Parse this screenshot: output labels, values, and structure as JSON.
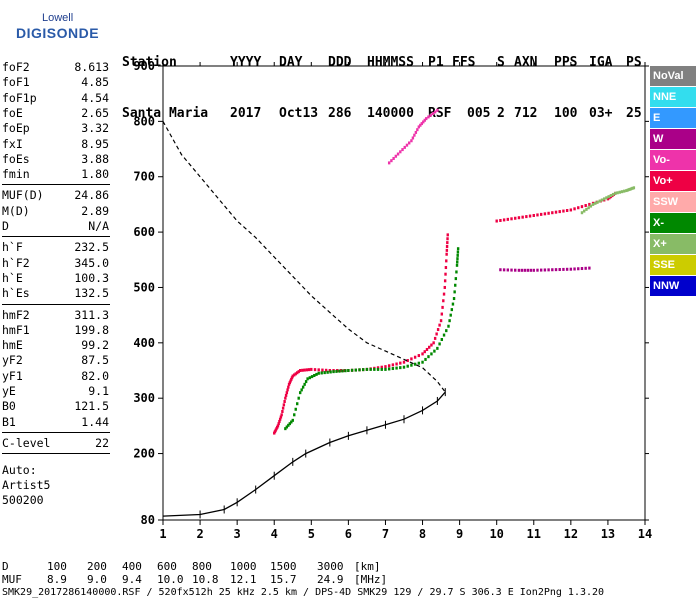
{
  "logo": {
    "top": "Lowell",
    "main": "DIGISONDE"
  },
  "header": {
    "row1": [
      "Station",
      "YYYY",
      "DAY",
      "DDD",
      "HHMMSS",
      "P1",
      "FFS",
      "S",
      "AXN",
      "PPS",
      "IGA",
      "PS"
    ],
    "row2": [
      "Santa Maria",
      "2017",
      "Oct13",
      "286",
      "140000",
      "RSF",
      "005",
      "2",
      "712",
      "100",
      "03+",
      "25"
    ]
  },
  "params_a": [
    {
      "label": "foF2",
      "value": "8.613"
    },
    {
      "label": "foF1",
      "value": "4.85"
    },
    {
      "label": "foF1p",
      "value": "4.54"
    },
    {
      "label": "foE",
      "value": "2.65"
    },
    {
      "label": "foEp",
      "value": "3.32"
    },
    {
      "label": "fxI",
      "value": "8.95"
    },
    {
      "label": "foEs",
      "value": "3.88"
    },
    {
      "label": "fmin",
      "value": "1.80"
    }
  ],
  "params_b": [
    {
      "label": "MUF(D)",
      "value": "24.86"
    },
    {
      "label": "M(D)",
      "value": "2.89"
    },
    {
      "label": "D",
      "value": "N/A"
    }
  ],
  "params_c": [
    {
      "label": "h`F",
      "value": "232.5"
    },
    {
      "label": "h`F2",
      "value": "345.0"
    },
    {
      "label": "h`E",
      "value": "100.3"
    },
    {
      "label": "h`Es",
      "value": "132.5"
    }
  ],
  "params_d": [
    {
      "label": "hmF2",
      "value": "311.3"
    },
    {
      "label": "hmF1",
      "value": "199.8"
    },
    {
      "label": "hmE",
      "value": "99.2"
    },
    {
      "label": "yF2",
      "value": "87.5"
    },
    {
      "label": "yF1",
      "value": "82.0"
    },
    {
      "label": "yE",
      "value": "9.1"
    },
    {
      "label": "B0",
      "value": "121.5"
    },
    {
      "label": "B1",
      "value": "1.44"
    }
  ],
  "params_e": [
    {
      "label": "C-level",
      "value": "22"
    }
  ],
  "auto": {
    "line1": "Auto:",
    "line2": "Artist5",
    "line3": "500200"
  },
  "legend": [
    {
      "label": "NoVal",
      "bg": "#808080",
      "fg": "#ffffff"
    },
    {
      "label": "NNE",
      "bg": "#33ddee",
      "fg": "#ffffff"
    },
    {
      "label": "E",
      "bg": "#3399ff",
      "fg": "#ffffff"
    },
    {
      "label": "W",
      "bg": "#aa0088",
      "fg": "#ffffff"
    },
    {
      "label": "Vo-",
      "bg": "#ee33aa",
      "fg": "#ffffff"
    },
    {
      "label": "Vo+",
      "bg": "#ee0044",
      "fg": "#ffffff"
    },
    {
      "label": "SSW",
      "bg": "#ffaaaa",
      "fg": "#ffffff"
    },
    {
      "label": "X-",
      "bg": "#008800",
      "fg": "#ffffff"
    },
    {
      "label": "X+",
      "bg": "#88bb66",
      "fg": "#ffffff"
    },
    {
      "label": "SSE",
      "bg": "#cccc00",
      "fg": "#ffffff"
    },
    {
      "label": "NNW",
      "bg": "#0000cc",
      "fg": "#ffffff"
    }
  ],
  "bottom": {
    "d_row": {
      "label": "D",
      "values": [
        "100",
        "200",
        "400",
        "600",
        "800",
        "1000",
        "1500",
        "3000",
        "[km]"
      ]
    },
    "muf_row": {
      "label": "MUF",
      "values": [
        "8.9",
        "9.0",
        "9.4",
        "10.0",
        "10.8",
        "12.1",
        "15.7",
        "24.9",
        "[MHz]"
      ]
    },
    "footer": "SMK29_2017286140000.RSF / 520fx512h 25 kHz 2.5 km / DPS-4D SMK29 129 / 29.7 S 306.3 E Ion2Png 1.3.20"
  },
  "chart_data": {
    "type": "scatter",
    "xlim": [
      1,
      14
    ],
    "ylim": [
      80,
      900
    ],
    "x_ticks": [
      "1",
      "2",
      "3",
      "4",
      "5",
      "6",
      "7",
      "8",
      "9",
      "10",
      "11",
      "12",
      "13",
      "14"
    ],
    "y_ticks": [
      "80",
      "200",
      "300",
      "400",
      "500",
      "600",
      "700",
      "800",
      "900"
    ],
    "grid": false,
    "series": [
      {
        "color": "#ee0044",
        "points": [
          [
            4.0,
            237
          ],
          [
            4.1,
            250
          ],
          [
            4.2,
            270
          ],
          [
            4.3,
            300
          ],
          [
            4.4,
            325
          ],
          [
            4.5,
            340
          ],
          [
            4.7,
            350
          ],
          [
            5.0,
            352
          ],
          [
            5.5,
            350
          ],
          [
            6.0,
            350
          ],
          [
            6.5,
            352
          ],
          [
            7.0,
            357
          ],
          [
            7.5,
            365
          ],
          [
            8.0,
            380
          ],
          [
            8.3,
            400
          ],
          [
            8.5,
            440
          ],
          [
            8.6,
            500
          ],
          [
            8.65,
            560
          ],
          [
            8.68,
            595
          ]
        ]
      },
      {
        "color": "#008800",
        "points": [
          [
            4.3,
            245
          ],
          [
            4.5,
            260
          ],
          [
            4.7,
            310
          ],
          [
            4.9,
            335
          ],
          [
            5.2,
            345
          ],
          [
            5.6,
            348
          ],
          [
            6.0,
            350
          ],
          [
            6.5,
            352
          ],
          [
            7.0,
            352
          ],
          [
            7.5,
            356
          ],
          [
            8.0,
            365
          ],
          [
            8.4,
            390
          ],
          [
            8.7,
            430
          ],
          [
            8.85,
            480
          ],
          [
            8.93,
            540
          ],
          [
            8.96,
            570
          ]
        ]
      },
      {
        "color": "#ee0044",
        "points": [
          [
            10.0,
            620
          ],
          [
            10.5,
            625
          ],
          [
            11.0,
            630
          ],
          [
            11.5,
            635
          ],
          [
            12.0,
            640
          ],
          [
            12.5,
            650
          ],
          [
            13.0,
            660
          ],
          [
            13.2,
            670
          ]
        ]
      },
      {
        "color": "#88bb66",
        "points": [
          [
            12.3,
            635
          ],
          [
            12.6,
            650
          ],
          [
            12.9,
            660
          ],
          [
            13.2,
            670
          ],
          [
            13.5,
            675
          ],
          [
            13.7,
            680
          ]
        ]
      },
      {
        "color": "#aa0088",
        "points": [
          [
            10.1,
            532
          ],
          [
            10.6,
            531
          ],
          [
            11.0,
            531
          ],
          [
            11.5,
            532
          ],
          [
            12.0,
            533
          ],
          [
            12.5,
            535
          ]
        ]
      },
      {
        "color": "#ee33aa",
        "points": [
          [
            7.1,
            725
          ],
          [
            7.4,
            745
          ],
          [
            7.7,
            765
          ],
          [
            7.9,
            790
          ],
          [
            8.1,
            805
          ],
          [
            8.4,
            820
          ]
        ]
      }
    ],
    "profile_solid": [
      [
        1.0,
        87
      ],
      [
        2.0,
        90
      ],
      [
        2.65,
        99
      ],
      [
        3.0,
        112
      ],
      [
        3.5,
        135
      ],
      [
        4.0,
        160
      ],
      [
        4.5,
        185
      ],
      [
        4.85,
        200
      ],
      [
        5.5,
        220
      ],
      [
        6.0,
        232
      ],
      [
        6.5,
        242
      ],
      [
        7.0,
        252
      ],
      [
        7.5,
        262
      ],
      [
        8.0,
        278
      ],
      [
        8.4,
        295
      ],
      [
        8.613,
        311
      ]
    ],
    "profile_dashed": [
      [
        1.0,
        800
      ],
      [
        1.5,
        740
      ],
      [
        2.0,
        700
      ],
      [
        2.5,
        660
      ],
      [
        3.0,
        620
      ],
      [
        3.5,
        590
      ],
      [
        4.0,
        555
      ],
      [
        4.5,
        520
      ],
      [
        5.0,
        485
      ],
      [
        5.5,
        455
      ],
      [
        6.0,
        425
      ],
      [
        6.5,
        400
      ],
      [
        7.0,
        385
      ],
      [
        7.5,
        370
      ],
      [
        8.0,
        355
      ],
      [
        8.4,
        330
      ],
      [
        8.613,
        311
      ]
    ]
  }
}
